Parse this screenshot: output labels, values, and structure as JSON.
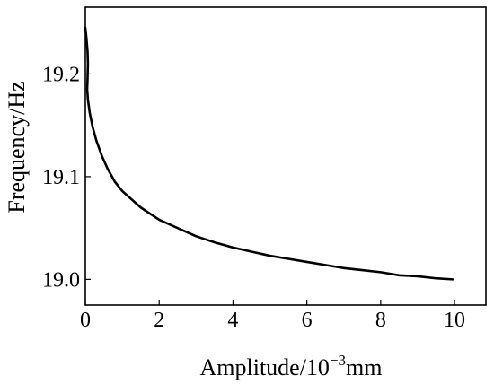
{
  "chart_data": {
    "type": "line",
    "title": "",
    "xlabel": {
      "prefix": "Amplitude/10",
      "sup": "−3",
      "suffix": "mm"
    },
    "ylabel": "Frequency/Hz",
    "xlim": [
      0,
      10.85
    ],
    "ylim": [
      18.975,
      19.265
    ],
    "x_ticks": [
      0,
      2,
      4,
      6,
      8,
      10
    ],
    "x_tick_labels": [
      "0",
      "2",
      "4",
      "6",
      "8",
      "10"
    ],
    "y_ticks": [
      19.0,
      19.1,
      19.2
    ],
    "y_tick_labels": [
      "19.0",
      "19.1",
      "19.2"
    ],
    "grid": false,
    "legend": "none",
    "series": [
      {
        "color": "#000000",
        "points": [
          [
            0.0,
            19.245
          ],
          [
            0.03,
            19.235
          ],
          [
            0.06,
            19.222
          ],
          [
            0.07,
            19.21
          ],
          [
            0.06,
            19.195
          ],
          [
            0.05,
            19.185
          ],
          [
            0.07,
            19.175
          ],
          [
            0.12,
            19.162
          ],
          [
            0.2,
            19.148
          ],
          [
            0.3,
            19.135
          ],
          [
            0.45,
            19.12
          ],
          [
            0.6,
            19.108
          ],
          [
            0.8,
            19.095
          ],
          [
            1.0,
            19.086
          ],
          [
            1.5,
            19.07
          ],
          [
            2.0,
            19.058
          ],
          [
            2.5,
            19.05
          ],
          [
            3.0,
            19.042
          ],
          [
            3.5,
            19.036
          ],
          [
            4.0,
            19.031
          ],
          [
            4.5,
            19.027
          ],
          [
            5.0,
            19.023
          ],
          [
            5.5,
            19.02
          ],
          [
            6.0,
            19.017
          ],
          [
            6.5,
            19.014
          ],
          [
            7.0,
            19.011
          ],
          [
            7.5,
            19.009
          ],
          [
            8.0,
            19.007
          ],
          [
            8.5,
            19.004
          ],
          [
            9.0,
            19.003
          ],
          [
            9.5,
            19.001
          ],
          [
            9.95,
            19.0
          ]
        ]
      }
    ]
  }
}
